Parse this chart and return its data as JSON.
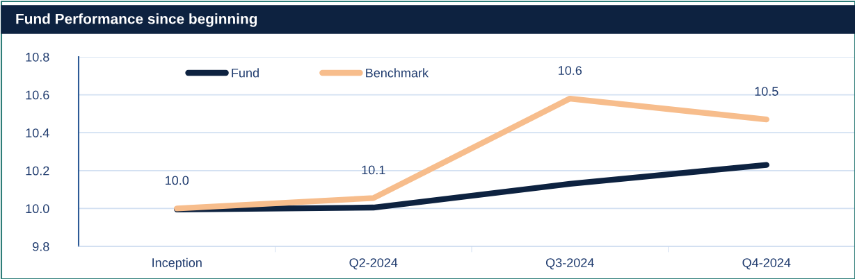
{
  "chart_data": {
    "type": "line",
    "title": "Fund Performance since beginning",
    "categories": [
      "Inception",
      "Q2-2024",
      "Q3-2024",
      "Q4-2024"
    ],
    "series": [
      {
        "name": "Fund",
        "color": "#0d2240",
        "values": [
          9.995,
          10.005,
          10.13,
          10.23
        ]
      },
      {
        "name": "Benchmark",
        "color": "#f7bd8c",
        "values": [
          10.0,
          10.055,
          10.58,
          10.47
        ],
        "value_labels": [
          "10.0",
          "10.1",
          "10.6",
          "10.5"
        ]
      }
    ],
    "ylim": [
      9.8,
      10.8
    ],
    "yticks": [
      {
        "value": 9.8,
        "label": "9.8"
      },
      {
        "value": 10.0,
        "label": "10.0"
      },
      {
        "value": 10.2,
        "label": "10.2"
      },
      {
        "value": 10.4,
        "label": "10.4"
      },
      {
        "value": 10.6,
        "label": "10.6"
      },
      {
        "value": 10.8,
        "label": "10.8"
      }
    ],
    "grid": "y",
    "legend": "top left",
    "marker": "none",
    "line_style": "solid"
  }
}
